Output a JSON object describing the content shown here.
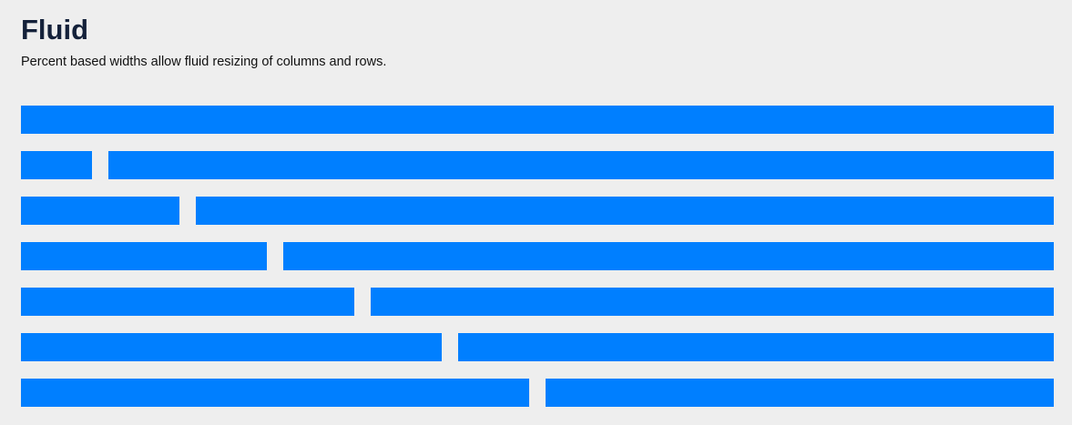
{
  "header": {
    "title": "Fluid",
    "description": "Percent based widths allow fluid resizing of columns and rows."
  },
  "colors": {
    "background": "#eeeeee",
    "column": "#007fff",
    "title": "#14213a"
  },
  "grid": {
    "rows": [
      {
        "columns": 1
      },
      {
        "columns": 2
      },
      {
        "columns": 2
      },
      {
        "columns": 2
      },
      {
        "columns": 2
      },
      {
        "columns": 2
      },
      {
        "columns": 2
      }
    ]
  }
}
